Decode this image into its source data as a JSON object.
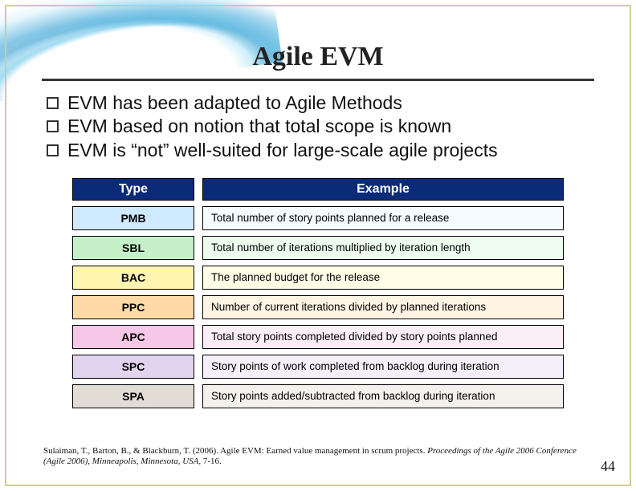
{
  "title": "Agile EVM",
  "bullets": [
    "EVM has been adapted to Agile Methods",
    "EVM based on notion that total scope is known",
    "EVM is “not” well-suited for large-scale agile projects"
  ],
  "table": {
    "header": {
      "type": "Type",
      "example": "Example"
    },
    "header_bg": "#0b2a78",
    "header_fg": "#ffffff",
    "rows": [
      {
        "type": "PMB",
        "example": "Total number of story points planned for a release",
        "type_bg": "#cfe9ff",
        "ex_bg": "#f5fbff"
      },
      {
        "type": "SBL",
        "example": "Total number of iterations multiplied by iteration length",
        "type_bg": "#c5f0c8",
        "ex_bg": "#eefcef"
      },
      {
        "type": "BAC",
        "example": "The planned budget for the release",
        "type_bg": "#fff5b0",
        "ex_bg": "#fffde6"
      },
      {
        "type": "PPC",
        "example": "Number of current iterations divided by planned iterations",
        "type_bg": "#ffd9a6",
        "ex_bg": "#fff3e4"
      },
      {
        "type": "APC",
        "example": "Total story points completed divided by story points planned",
        "type_bg": "#f6c7e6",
        "ex_bg": "#fceef7"
      },
      {
        "type": "SPC",
        "example": "Story points of work completed from backlog during iteration",
        "type_bg": "#e2d4ef",
        "ex_bg": "#f4eff9"
      },
      {
        "type": "SPA",
        "example": "Story points added/subtracted from backlog during iteration",
        "type_bg": "#e1ddd4",
        "ex_bg": "#f3f1ec"
      }
    ]
  },
  "citation": {
    "plain1": "Sulaiman, T., Barton, B., & Blackburn, T. (2006). Agile EVM: Earned value management in scrum projects. ",
    "ital1": "Proceedings of the Agile 2006 Conference (Agile 2006), Minneapolis, Minnesota, USA,",
    "plain2": " 7-16."
  },
  "page_number": "44"
}
